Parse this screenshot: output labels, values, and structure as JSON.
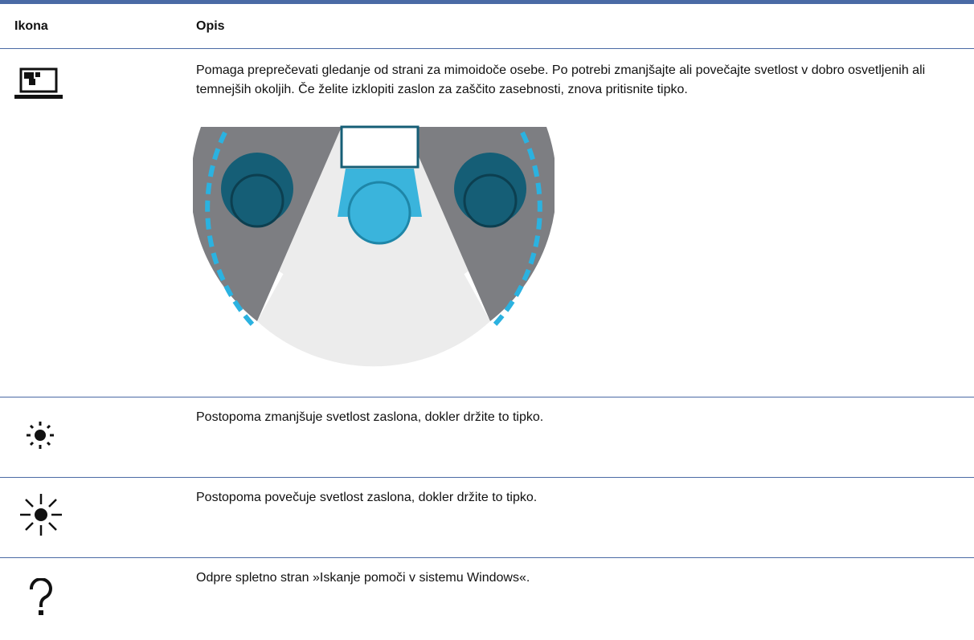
{
  "table": {
    "header": [
      "Ikona",
      "Opis"
    ],
    "rows": [
      "Pomaga preprečevati gledanje od strani za mimoidoče osebe. Po potrebi zmanjšajte ali povečajte svetlost v dobro osvetljenih ali temnejših okoljih. Če želite izklopiti zaslon za zaščito zasebnosti, znova pritisnite tipko.",
      "Postopoma zmanjšuje svetlost zaslona, dokler držite to tipko.",
      "Postopoma povečuje svetlost zaslona, dokler držite to tipko.",
      "Odpre spletno stran »Iskanje pomoči v sistemu Windows«."
    ]
  }
}
